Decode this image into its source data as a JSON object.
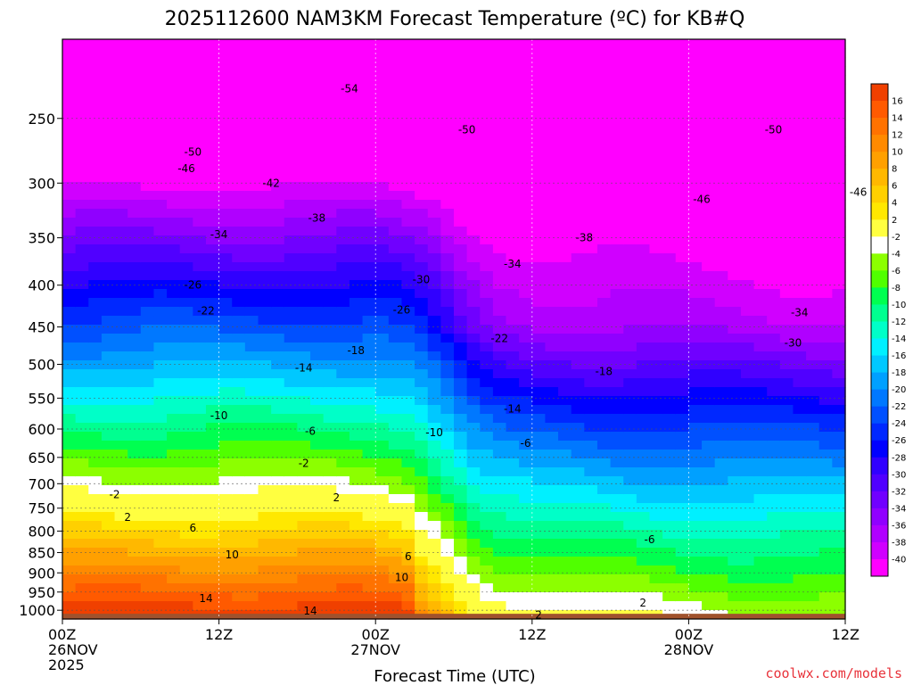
{
  "title": "2025112600 NAM3KM Forecast Temperature (ºC) for KB#Q",
  "xlabel": "Forecast Time (UTC)",
  "watermark": "coolwx.com/models",
  "chart_data": {
    "type": "heatmap",
    "title": "2025112600 NAM3KM Forecast Temperature (ºC) for KB#Q",
    "xlabel": "Forecast Time (UTC)",
    "ylabel": "",
    "x_ticks": [
      {
        "hour": 0,
        "lines": [
          "00Z",
          "26NOV",
          "2025"
        ]
      },
      {
        "hour": 12,
        "lines": [
          "12Z"
        ]
      },
      {
        "hour": 24,
        "lines": [
          "00Z",
          "27NOV"
        ]
      },
      {
        "hour": 36,
        "lines": [
          "12Z"
        ]
      },
      {
        "hour": 48,
        "lines": [
          "00Z",
          "28NOV"
        ]
      },
      {
        "hour": 60,
        "lines": [
          "12Z"
        ]
      }
    ],
    "x_range_hours": [
      0,
      60
    ],
    "y_ticks": [
      250,
      300,
      350,
      400,
      450,
      500,
      550,
      600,
      650,
      700,
      750,
      800,
      850,
      900,
      950,
      1000
    ],
    "y_range_hpa": [
      1025,
      200
    ],
    "y_scale": "log",
    "grid": true,
    "colorbar_labels": [
      16,
      14,
      12,
      10,
      8,
      6,
      4,
      2,
      -2,
      -4,
      -6,
      -8,
      -10,
      -12,
      -14,
      -16,
      -18,
      -20,
      -22,
      -24,
      -26,
      -28,
      -30,
      -32,
      -34,
      -36,
      -38,
      -40
    ],
    "colorbar_colors": [
      "#f04000",
      "#ff5a00",
      "#ff7200",
      "#ff8a00",
      "#ffa000",
      "#ffb800",
      "#ffd000",
      "#ffe800",
      "#ffff40",
      "#ffffff",
      "#8cff00",
      "#50ff00",
      "#00ff50",
      "#00ff90",
      "#00ffc8",
      "#00f0ff",
      "#00c8ff",
      "#00a0ff",
      "#0078ff",
      "#0050ff",
      "#0028ff",
      "#0000ff",
      "#3000ff",
      "#5000ff",
      "#7000ff",
      "#9000ff",
      "#b000ff",
      "#d000ff",
      "#ff00ff"
    ],
    "contour_labels": [
      {
        "text": "-54",
        "hour": 22.0,
        "p": 230
      },
      {
        "text": "-50",
        "hour": 10.0,
        "p": 275
      },
      {
        "text": "-50",
        "hour": 31.0,
        "p": 258
      },
      {
        "text": "-50",
        "hour": 54.5,
        "p": 258
      },
      {
        "text": "-46",
        "hour": 9.5,
        "p": 288
      },
      {
        "text": "-46",
        "hour": 49.0,
        "p": 314
      },
      {
        "text": "-46",
        "hour": 61.0,
        "p": 308
      },
      {
        "text": "-42",
        "hour": 16.0,
        "p": 300
      },
      {
        "text": "-38",
        "hour": 19.5,
        "p": 331
      },
      {
        "text": "-38",
        "hour": 40.0,
        "p": 350
      },
      {
        "text": "-34",
        "hour": 12.0,
        "p": 347
      },
      {
        "text": "-34",
        "hour": 34.5,
        "p": 377
      },
      {
        "text": "-34",
        "hour": 56.5,
        "p": 432
      },
      {
        "text": "-30",
        "hour": 27.5,
        "p": 394
      },
      {
        "text": "-30",
        "hour": 56.0,
        "p": 471
      },
      {
        "text": "-26",
        "hour": 10.0,
        "p": 400
      },
      {
        "text": "-26",
        "hour": 26.0,
        "p": 429
      },
      {
        "text": "-22",
        "hour": 11.0,
        "p": 430
      },
      {
        "text": "-22",
        "hour": 33.5,
        "p": 465
      },
      {
        "text": "-18",
        "hour": 22.5,
        "p": 481
      },
      {
        "text": "-18",
        "hour": 41.5,
        "p": 510
      },
      {
        "text": "-14",
        "hour": 18.5,
        "p": 505
      },
      {
        "text": "-14",
        "hour": 34.5,
        "p": 567
      },
      {
        "text": "-10",
        "hour": 12.0,
        "p": 578
      },
      {
        "text": "-10",
        "hour": 28.5,
        "p": 606
      },
      {
        "text": "-6",
        "hour": 19.0,
        "p": 604
      },
      {
        "text": "-6",
        "hour": 35.5,
        "p": 625
      },
      {
        "text": "-6",
        "hour": 45.0,
        "p": 820
      },
      {
        "text": "-2",
        "hour": 18.5,
        "p": 661
      },
      {
        "text": "-2",
        "hour": 4.0,
        "p": 722
      },
      {
        "text": "2",
        "hour": 21.0,
        "p": 728
      },
      {
        "text": "2",
        "hour": 5.0,
        "p": 770
      },
      {
        "text": "2",
        "hour": 44.5,
        "p": 980
      },
      {
        "text": "2",
        "hour": 36.5,
        "p": 1013
      },
      {
        "text": "6",
        "hour": 10.0,
        "p": 793
      },
      {
        "text": "6",
        "hour": 26.5,
        "p": 860
      },
      {
        "text": "10",
        "hour": 13.0,
        "p": 855
      },
      {
        "text": "10",
        "hour": 26.0,
        "p": 912
      },
      {
        "text": "14",
        "hour": 11.0,
        "p": 968
      },
      {
        "text": "14",
        "hour": 19.0,
        "p": 1002
      }
    ]
  }
}
